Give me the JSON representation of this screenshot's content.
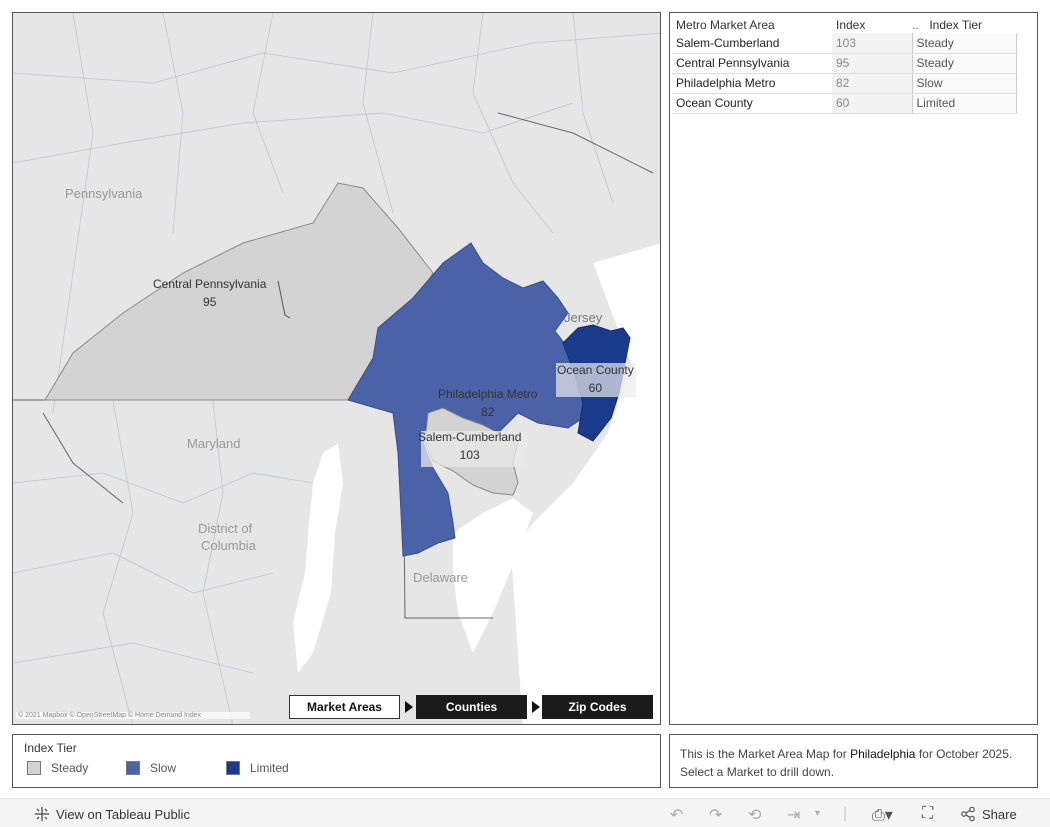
{
  "map": {
    "attribution": "© 2021 Mapbox © OpenStreetMap © Home Demand Index",
    "places": {
      "pennsylvania": "Pennsylvania",
      "maryland": "Maryland",
      "dc_line1": "District of",
      "dc_line2": "Columbia",
      "delaware": "Delaware",
      "jersey": "Jersey"
    },
    "regions": [
      {
        "name": "Central Pennsylvania",
        "index": "95",
        "tier": "Steady"
      },
      {
        "name": "Philadelphia Metro",
        "index": "82",
        "tier": "Slow"
      },
      {
        "name": "Ocean County",
        "index": "60",
        "tier": "Limited"
      },
      {
        "name": "Salem-Cumberland",
        "index": "103",
        "tier": "Steady"
      }
    ],
    "drill": {
      "market_areas": "Market Areas",
      "counties": "Counties",
      "zip_codes": "Zip Codes",
      "active": "Market Areas"
    }
  },
  "table": {
    "headers": {
      "name": "Metro Market Area",
      "index": "Index",
      "dots": "..",
      "tier": "Index Tier"
    },
    "rows": [
      {
        "name": "Salem-Cumberland",
        "index": "103",
        "tier": "Steady"
      },
      {
        "name": "Central Pennsylvania",
        "index": "95",
        "tier": "Steady"
      },
      {
        "name": "Philadelphia Metro",
        "index": "82",
        "tier": "Slow"
      },
      {
        "name": "Ocean County",
        "index": "60",
        "tier": "Limited"
      }
    ]
  },
  "legend": {
    "title": "Index Tier",
    "items": [
      {
        "label": "Steady",
        "color": "#d3d3d3"
      },
      {
        "label": "Slow",
        "color": "#4a63a8"
      },
      {
        "label": "Limited",
        "color": "#1a3a8c"
      }
    ]
  },
  "note": {
    "prefix": "This is the Market Area Map for",
    "city": "Philadelphia",
    "suffix": "for October 2025.",
    "line2": "Select a Market to drill down."
  },
  "toolbar": {
    "view_label": "View on Tableau Public",
    "share_label": "Share",
    "icons": [
      "undo-icon",
      "redo-icon",
      "revert-icon",
      "refresh-icon",
      "download-icon",
      "fullscreen-icon",
      "share-icon"
    ]
  },
  "colors": {
    "steady": "#d3d3d3",
    "slow": "#4a63a8",
    "limited": "#1a3a8c",
    "water": "#ffffff",
    "land": "#e6e6e6"
  }
}
